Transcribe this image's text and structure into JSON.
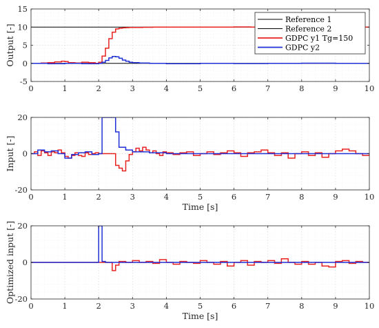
{
  "chart_data": [
    {
      "type": "line",
      "xlabel": "",
      "ylabel": "Output [-]",
      "xlim": [
        0,
        10
      ],
      "ylim": [
        -5,
        15
      ],
      "xticks": [
        0,
        1,
        2,
        3,
        4,
        5,
        6,
        7,
        8,
        9,
        10
      ],
      "yticks": [
        -5,
        0,
        5,
        10,
        15
      ],
      "grid": true,
      "legend_position": "top-right",
      "series": [
        {
          "name": "Reference 1",
          "color": "#000000",
          "step": false,
          "x": [
            0,
            10
          ],
          "y": [
            10,
            10
          ]
        },
        {
          "name": "Reference 2",
          "color": "#000000",
          "step": false,
          "x": [
            0,
            10
          ],
          "y": [
            0,
            0
          ]
        },
        {
          "name": "GDPC y1 Tg=150",
          "color": "#e8201e",
          "step": true,
          "x": [
            0,
            0.3,
            0.5,
            0.7,
            0.9,
            1.0,
            1.1,
            1.3,
            1.5,
            1.7,
            1.9,
            2.0,
            2.1,
            2.2,
            2.3,
            2.4,
            2.5,
            2.6,
            2.7,
            2.8,
            2.9,
            3.0,
            3.3,
            3.6,
            4.0,
            5.0,
            6.0,
            6.5,
            7.0,
            8.0,
            9.0,
            9.5,
            10
          ],
          "y": [
            0,
            0.1,
            0.2,
            0.4,
            0.6,
            0.5,
            0.2,
            0.1,
            0.3,
            0.2,
            0.0,
            0.3,
            2.0,
            4.2,
            6.8,
            8.6,
            9.5,
            9.7,
            9.8,
            9.85,
            9.9,
            9.9,
            9.95,
            10.0,
            10.0,
            10.0,
            10.05,
            10.0,
            9.95,
            10.0,
            10.0,
            10.0,
            10.0
          ]
        },
        {
          "name": "GDPC y2",
          "color": "#1f2fd6",
          "step": true,
          "x": [
            0,
            0.5,
            1.0,
            1.5,
            2.0,
            2.1,
            2.2,
            2.3,
            2.4,
            2.5,
            2.6,
            2.7,
            2.8,
            2.9,
            3.0,
            3.2,
            3.5,
            4.0,
            5.0,
            6.0,
            7.0,
            8.0,
            9.0,
            10
          ],
          "y": [
            0,
            -0.1,
            0.0,
            -0.1,
            0.0,
            0.3,
            0.8,
            1.5,
            1.9,
            1.8,
            1.4,
            0.9,
            0.6,
            0.3,
            0.2,
            0.1,
            0.0,
            -0.1,
            0.0,
            -0.05,
            0.0,
            0.05,
            0.0,
            0.0
          ]
        }
      ]
    },
    {
      "type": "line",
      "xlabel": "Time [s]",
      "ylabel": "Input [-]",
      "xlim": [
        0,
        10
      ],
      "ylim": [
        -20,
        20
      ],
      "xticks": [
        0,
        1,
        2,
        3,
        4,
        5,
        6,
        7,
        8,
        9,
        10
      ],
      "yticks": [
        -20,
        0,
        20
      ],
      "grid": true,
      "series": [
        {
          "name": "",
          "color": "#e8201e",
          "step": true,
          "x": [
            0,
            0.1,
            0.2,
            0.3,
            0.4,
            0.5,
            0.6,
            0.7,
            0.8,
            0.9,
            1.0,
            1.1,
            1.2,
            1.3,
            1.4,
            1.5,
            1.6,
            1.7,
            1.8,
            1.9,
            2.0,
            2.4,
            2.5,
            2.6,
            2.7,
            2.8,
            2.9,
            3.0,
            3.1,
            3.2,
            3.3,
            3.4,
            3.5,
            3.6,
            3.7,
            3.8,
            3.9,
            4.0,
            4.2,
            4.4,
            4.6,
            4.8,
            5.0,
            5.2,
            5.4,
            5.6,
            5.8,
            6.0,
            6.2,
            6.4,
            6.6,
            6.8,
            7.0,
            7.2,
            7.4,
            7.6,
            7.8,
            8.0,
            8.2,
            8.4,
            8.6,
            8.8,
            9.0,
            9.2,
            9.4,
            9.6,
            9.8,
            10
          ],
          "y": [
            0,
            1.0,
            -1.0,
            1.5,
            0.5,
            -1.0,
            1.0,
            0.5,
            2.0,
            0.5,
            -1.5,
            -2.5,
            -1.0,
            0.5,
            -1.0,
            -1.5,
            0.5,
            -0.5,
            0.0,
            0.5,
            0.0,
            0.0,
            -6.5,
            -8.0,
            -9.5,
            -4.0,
            -0.5,
            1.0,
            3.0,
            1.5,
            3.5,
            2.0,
            0.5,
            1.5,
            0.0,
            -1.0,
            1.0,
            0.5,
            -0.5,
            0.5,
            1.0,
            -1.0,
            0.0,
            1.0,
            -0.5,
            0.5,
            1.5,
            0.5,
            -1.5,
            0.5,
            1.0,
            2.0,
            0.5,
            -1.0,
            0.5,
            -2.5,
            0.0,
            1.0,
            -1.0,
            0.5,
            -2.0,
            0.0,
            1.5,
            2.5,
            1.5,
            0.0,
            -1.0,
            0.0
          ]
        },
        {
          "name": "",
          "color": "#1f2fd6",
          "step": true,
          "x": [
            0,
            0.2,
            0.4,
            0.6,
            0.8,
            1.0,
            1.2,
            1.4,
            1.6,
            1.8,
            2.0,
            2.1,
            2.4,
            2.5,
            2.6,
            2.8,
            3.0,
            3.5,
            4.0,
            5.0,
            6.0,
            7.0,
            8.0,
            9.0,
            10
          ],
          "y": [
            0,
            2.0,
            1.0,
            1.5,
            0.0,
            -2.5,
            -0.5,
            0.5,
            1.0,
            -0.5,
            0.0,
            20,
            20,
            12.0,
            3.5,
            2.0,
            1.0,
            0.5,
            0.0,
            0.0,
            0.0,
            0.0,
            0.0,
            0.0,
            0.0
          ]
        }
      ]
    },
    {
      "type": "line",
      "xlabel": "Time [s]",
      "ylabel": "Optimized input [-]",
      "xlim": [
        0,
        10
      ],
      "ylim": [
        -20,
        20
      ],
      "xticks": [
        0,
        1,
        2,
        3,
        4,
        5,
        6,
        7,
        8,
        9,
        10
      ],
      "yticks": [
        -20,
        0,
        20
      ],
      "grid": true,
      "series": [
        {
          "name": "",
          "color": "#e8201e",
          "step": true,
          "x": [
            0,
            2.4,
            2.5,
            2.6,
            2.8,
            3.0,
            3.2,
            3.4,
            3.6,
            3.8,
            4.0,
            4.2,
            4.4,
            4.6,
            4.8,
            5.0,
            5.2,
            5.4,
            5.6,
            5.8,
            6.0,
            6.2,
            6.4,
            6.6,
            6.8,
            7.0,
            7.2,
            7.4,
            7.6,
            7.8,
            8.0,
            8.2,
            8.4,
            8.6,
            8.8,
            9.0,
            9.2,
            9.4,
            9.6,
            9.8,
            10
          ],
          "y": [
            0,
            -4.5,
            -1.5,
            0.5,
            0.0,
            1.0,
            0.0,
            0.5,
            -0.5,
            1.5,
            0.0,
            -1.0,
            0.5,
            0.0,
            -0.5,
            1.0,
            0.0,
            -1.0,
            0.5,
            -2.0,
            0.0,
            1.0,
            -1.5,
            0.5,
            0.0,
            1.0,
            -0.5,
            2.0,
            0.0,
            -1.0,
            0.5,
            -1.0,
            0.0,
            -2.0,
            -2.5,
            0.5,
            1.0,
            -0.5,
            0.5,
            0.0,
            0.0
          ]
        },
        {
          "name": "",
          "color": "#1f2fd6",
          "step": true,
          "x": [
            0,
            2.0,
            2.1,
            2.2,
            10
          ],
          "y": [
            0,
            20,
            0.5,
            0.0,
            0.0
          ]
        }
      ]
    }
  ]
}
